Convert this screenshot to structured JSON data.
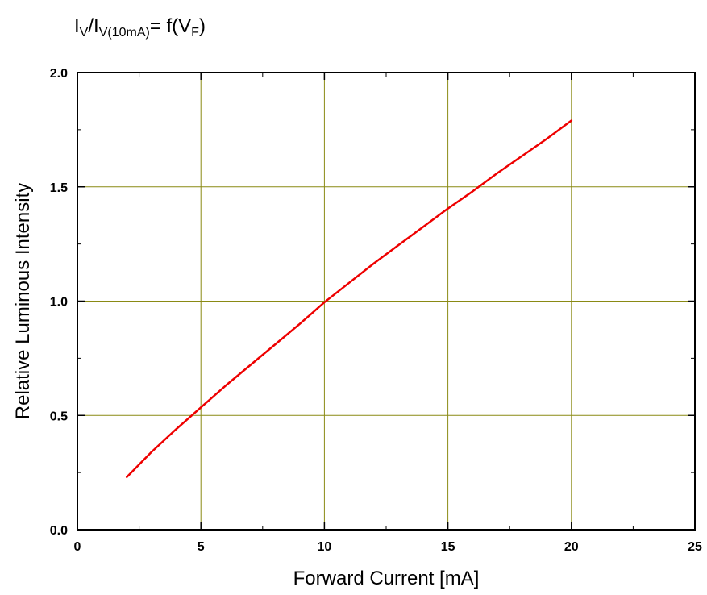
{
  "chart_data": {
    "type": "line",
    "title": {
      "part1": "I",
      "sub1": "V",
      "part2": "/I",
      "sub2": "V(10mA)",
      "part3": "= f(V",
      "sub3": "F",
      "part4": ")"
    },
    "xlabel": "Forward Current [mA]",
    "ylabel": "Relative Luminous Intensity",
    "xlim": [
      0,
      25
    ],
    "ylim": [
      0.0,
      2.0
    ],
    "x_ticks": [
      0,
      5,
      10,
      15,
      20,
      25
    ],
    "x_tick_labels": [
      "0",
      "5",
      "10",
      "15",
      "20",
      "25"
    ],
    "y_ticks": [
      0.0,
      0.5,
      1.0,
      1.5,
      2.0
    ],
    "y_tick_labels": [
      "0.0",
      "0.5",
      "1.0",
      "1.5",
      "2.0"
    ],
    "grid": true,
    "colors": {
      "grid": "#8a8a14",
      "curve": "#ee0000",
      "axes": "#000000"
    },
    "series": [
      {
        "x": [
          2,
          3,
          4,
          5,
          6,
          7,
          8,
          9,
          10,
          11,
          12,
          13,
          14,
          15,
          16,
          17,
          18,
          19,
          20
        ],
        "y": [
          0.23,
          0.34,
          0.44,
          0.535,
          0.63,
          0.72,
          0.81,
          0.9,
          0.995,
          1.08,
          1.165,
          1.245,
          1.325,
          1.405,
          1.48,
          1.56,
          1.635,
          1.71,
          1.79
        ]
      }
    ]
  }
}
